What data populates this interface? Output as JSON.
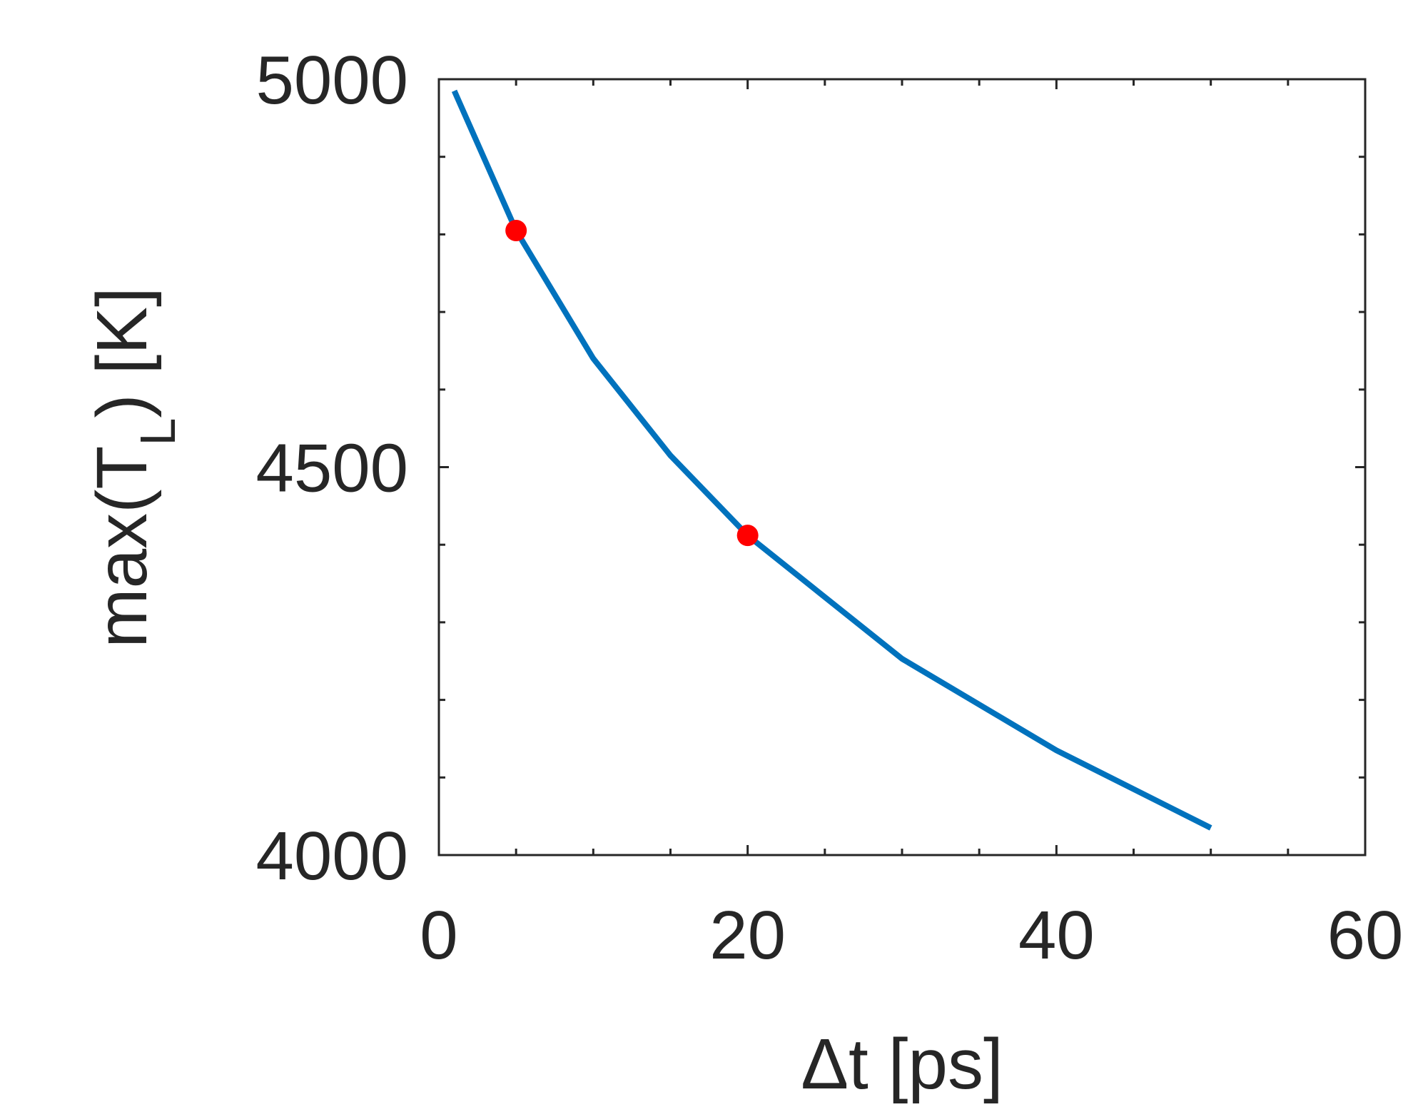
{
  "chart_data": {
    "type": "line",
    "title": "",
    "xlabel": "Δt [ps]",
    "ylabel": "max(T",
    "ylabel_sub": "L",
    "ylabel_end": ") [K]",
    "xlim": [
      0,
      60
    ],
    "ylim": [
      4000,
      5000
    ],
    "xticks": [
      0,
      20,
      40,
      60
    ],
    "yticks": [
      4000,
      4500,
      5000
    ],
    "x_minor_step": 5,
    "y_minor_step": 100,
    "grid": false,
    "series": [
      {
        "x": [
          1,
          5,
          10,
          15,
          20,
          30,
          40,
          50
        ],
        "y": [
          4985,
          4805,
          4640,
          4515,
          4412,
          4253,
          4135,
          4035
        ],
        "color": "#0072BD"
      }
    ],
    "highlight_points": {
      "x": [
        5,
        20
      ],
      "y": [
        4805,
        4412
      ],
      "color": "#FF0000"
    }
  }
}
